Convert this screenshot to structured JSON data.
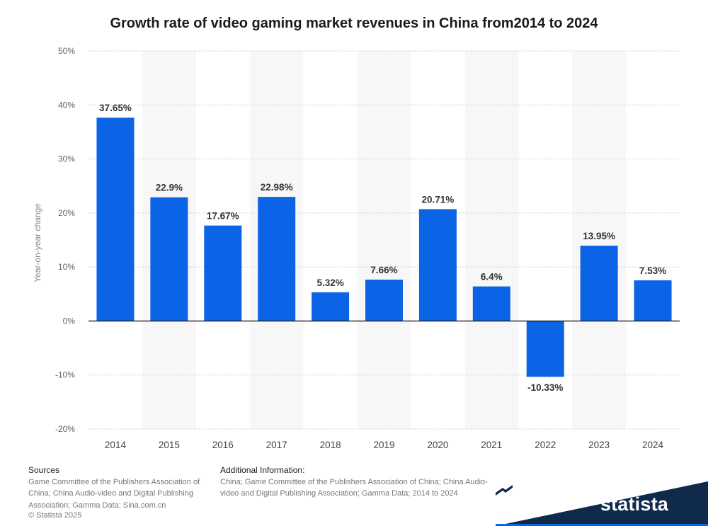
{
  "title": "Growth rate of video gaming market revenues in China from2014 to 2024",
  "chart_data": {
    "type": "bar",
    "categories": [
      "2014",
      "2015",
      "2016",
      "2017",
      "2018",
      "2019",
      "2020",
      "2021",
      "2022",
      "2023",
      "2024"
    ],
    "values": [
      37.65,
      22.9,
      17.67,
      22.98,
      5.32,
      7.66,
      20.71,
      6.4,
      -10.33,
      13.95,
      7.53
    ],
    "value_labels": [
      "37.65%",
      "22.9%",
      "17.67%",
      "22.98%",
      "5.32%",
      "7.66%",
      "20.71%",
      "6.4%",
      "-10.33%",
      "13.95%",
      "7.53%"
    ],
    "ylabel": "Year-on-year change",
    "xlabel": "",
    "ylim": [
      -20,
      50
    ],
    "yticks": [
      -20,
      -10,
      0,
      10,
      20,
      30,
      40,
      50
    ],
    "ytick_labels": [
      "-20%",
      "-10%",
      "0%",
      "10%",
      "20%",
      "30%",
      "40%",
      "50%"
    ],
    "bar_color": "#0b63e5",
    "grid": true
  },
  "footer": {
    "sources_heading": "Sources",
    "sources_text": "Game Committee of the Publishers Association of China; China Audio-video and Digital Publishing Association; Gamma Data; Sina.com.cn",
    "additional_heading": "Additional Information:",
    "additional_text": "China; Game Committee of the Publishers Association of China; China Audio-video and Digital Publishing Association; Gamma Data; 2014 to 2024",
    "copyright": "© Statista 2025"
  },
  "brand": {
    "name": "statista",
    "color": "#0f2a4a",
    "logo_icon": "statista-logo-icon"
  }
}
